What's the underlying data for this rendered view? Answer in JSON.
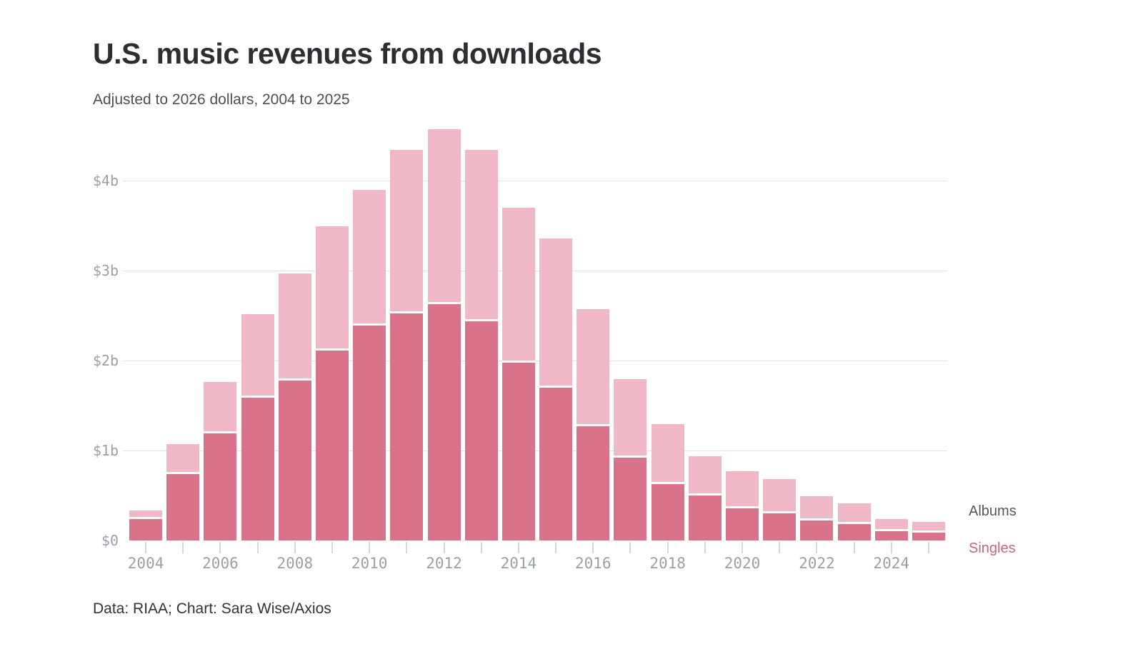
{
  "header": {
    "title": "U.S. music revenues from downloads",
    "subtitle": "Adjusted to 2026 dollars, 2004 to 2025"
  },
  "footer": {
    "credit": "Data: RIAA; Chart: Sara Wise/Axios"
  },
  "legend": {
    "albums_label": "Albums",
    "singles_label": "Singles"
  },
  "colors": {
    "albums_bar": "#f0b8c7",
    "singles_bar": "#d87389",
    "gridline": "#e0e2e4",
    "axis_text": "#9aa0a6",
    "legend_albums_text": "#55565a",
    "legend_singles_text": "#c4677a"
  },
  "chart_data": {
    "type": "bar",
    "stacked": true,
    "title": "U.S. music revenues from downloads",
    "subtitle": "Adjusted to 2026 dollars, 2004 to 2025",
    "unit": "billions of U.S. dollars (2026 dollars)",
    "categories": [
      "2004",
      "2005",
      "2006",
      "2007",
      "2008",
      "2009",
      "2010",
      "2011",
      "2012",
      "2013",
      "2014",
      "2015",
      "2016",
      "2017",
      "2018",
      "2019",
      "2020",
      "2021",
      "2022",
      "2023",
      "2024",
      "2025"
    ],
    "series": [
      {
        "name": "Singles",
        "color": "#d87389",
        "values": [
          0.24,
          0.74,
          1.19,
          1.59,
          1.78,
          2.11,
          2.39,
          2.52,
          2.63,
          2.44,
          1.98,
          1.7,
          1.27,
          0.92,
          0.63,
          0.5,
          0.36,
          0.3,
          0.22,
          0.18,
          0.1,
          0.09
        ]
      },
      {
        "name": "Albums",
        "color": "#f0b8c7",
        "values": [
          0.09,
          0.33,
          0.57,
          0.93,
          1.19,
          1.38,
          1.51,
          1.82,
          1.94,
          1.9,
          1.72,
          1.66,
          1.3,
          0.87,
          0.66,
          0.44,
          0.41,
          0.38,
          0.27,
          0.23,
          0.14,
          0.12
        ]
      }
    ],
    "totals": [
      0.33,
      1.07,
      1.76,
      2.52,
      2.97,
      3.49,
      3.9,
      4.34,
      4.57,
      4.34,
      3.7,
      3.36,
      2.57,
      1.79,
      1.29,
      0.94,
      0.77,
      0.68,
      0.49,
      0.41,
      0.24,
      0.21
    ],
    "y_axis": {
      "ticks": [
        0,
        1,
        2,
        3,
        4
      ],
      "tick_labels": [
        "$0",
        "$1b",
        "$2b",
        "$3b",
        "$4b"
      ],
      "max": 4.66,
      "gridlines_at": [
        1,
        2,
        3,
        4
      ]
    },
    "x_axis": {
      "labeled_ticks": [
        "2004",
        "2006",
        "2008",
        "2010",
        "2012",
        "2014",
        "2016",
        "2018",
        "2020",
        "2022",
        "2024"
      ],
      "minor_tick_every_year": true
    },
    "legend_position": "right",
    "grid": "horizontal"
  }
}
